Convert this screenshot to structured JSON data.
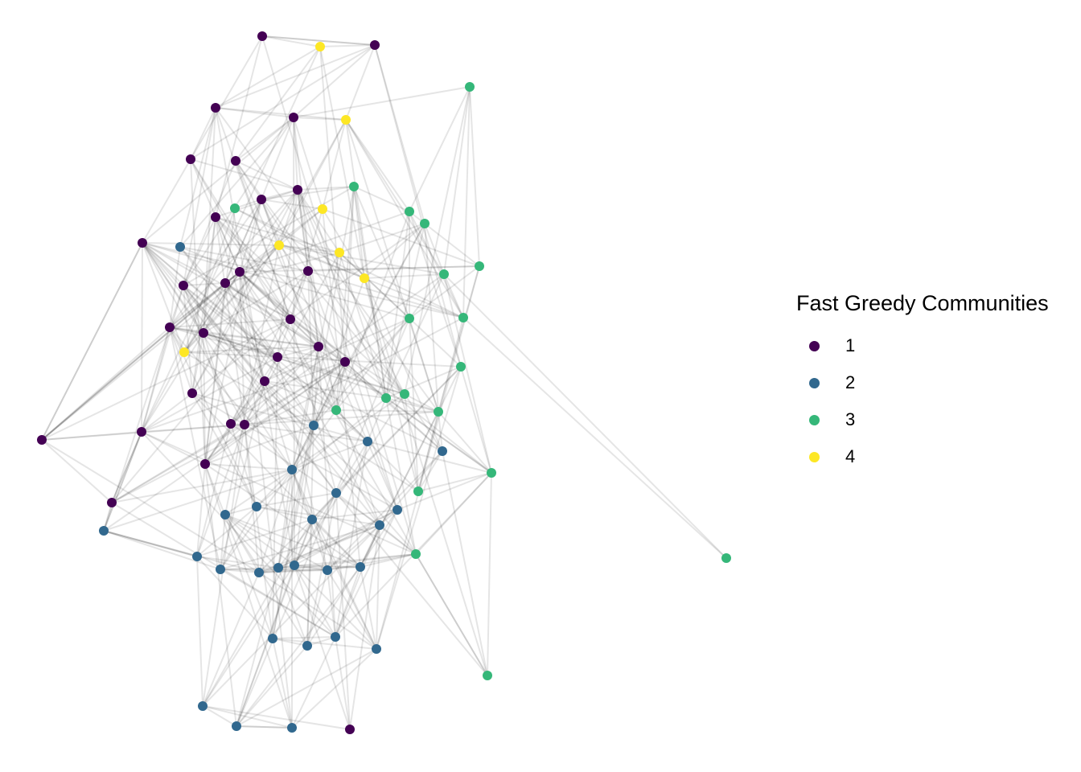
{
  "legend": {
    "title": "Fast Greedy Communities",
    "entries": [
      {
        "label": "1",
        "color": "#440154"
      },
      {
        "label": "2",
        "color": "#31688e"
      },
      {
        "label": "3",
        "color": "#35b779"
      },
      {
        "label": "4",
        "color": "#fde725"
      }
    ]
  },
  "edge_color": "#000000"
}
